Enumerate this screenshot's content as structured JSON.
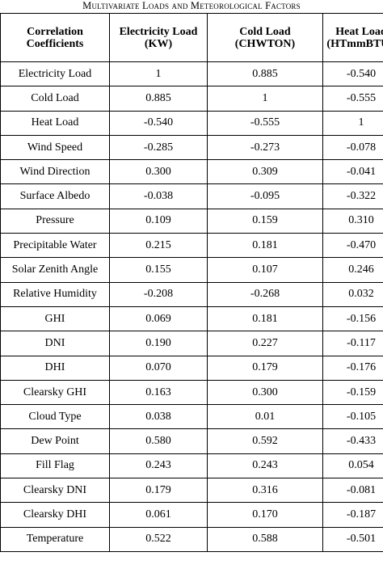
{
  "caption": "Multivariate Loads and Meteorological Factors",
  "header": {
    "c0": "Correlation Coefficients",
    "c1": "Electricity Load (KW)",
    "c2": "Cold Load (CHWTON)",
    "c3": "Heat Load (HTmmBTU )"
  },
  "rows": [
    {
      "label": "Electricity Load",
      "e": "1",
      "c": "0.885",
      "h": "-0.540"
    },
    {
      "label": "Cold Load",
      "e": "0.885",
      "c": "1",
      "h": "-0.555"
    },
    {
      "label": "Heat Load",
      "e": "-0.540",
      "c": "-0.555",
      "h": "1"
    },
    {
      "label": "Wind Speed",
      "e": "-0.285",
      "c": "-0.273",
      "h": "-0.078"
    },
    {
      "label": "Wind Direction",
      "e": "0.300",
      "c": "0.309",
      "h": "-0.041"
    },
    {
      "label": "Surface Albedo",
      "e": "-0.038",
      "c": "-0.095",
      "h": "-0.322"
    },
    {
      "label": "Pressure",
      "e": "0.109",
      "c": "0.159",
      "h": "0.310"
    },
    {
      "label": "Precipitable Water",
      "e": "0.215",
      "c": "0.181",
      "h": "-0.470"
    },
    {
      "label": "Solar Zenith Angle",
      "e": "0.155",
      "c": "0.107",
      "h": "0.246"
    },
    {
      "label": "Relative Humidity",
      "e": "-0.208",
      "c": "-0.268",
      "h": "0.032"
    },
    {
      "label": "GHI",
      "e": "0.069",
      "c": "0.181",
      "h": "-0.156"
    },
    {
      "label": "DNI",
      "e": "0.190",
      "c": "0.227",
      "h": "-0.117"
    },
    {
      "label": "DHI",
      "e": "0.070",
      "c": "0.179",
      "h": "-0.176"
    },
    {
      "label": "Clearsky GHI",
      "e": "0.163",
      "c": "0.300",
      "h": "-0.159"
    },
    {
      "label": "Cloud Type",
      "e": "0.038",
      "c": "0.01",
      "h": "-0.105"
    },
    {
      "label": "Dew Point",
      "e": "0.580",
      "c": "0.592",
      "h": "-0.433"
    },
    {
      "label": "Fill Flag",
      "e": "0.243",
      "c": "0.243",
      "h": "0.054"
    },
    {
      "label": "Clearsky DNI",
      "e": "0.179",
      "c": "0.316",
      "h": "-0.081"
    },
    {
      "label": "Clearsky DHI",
      "e": "0.061",
      "c": "0.170",
      "h": "-0.187"
    },
    {
      "label": "Temperature",
      "e": "0.522",
      "c": "0.588",
      "h": "-0.501"
    }
  ]
}
